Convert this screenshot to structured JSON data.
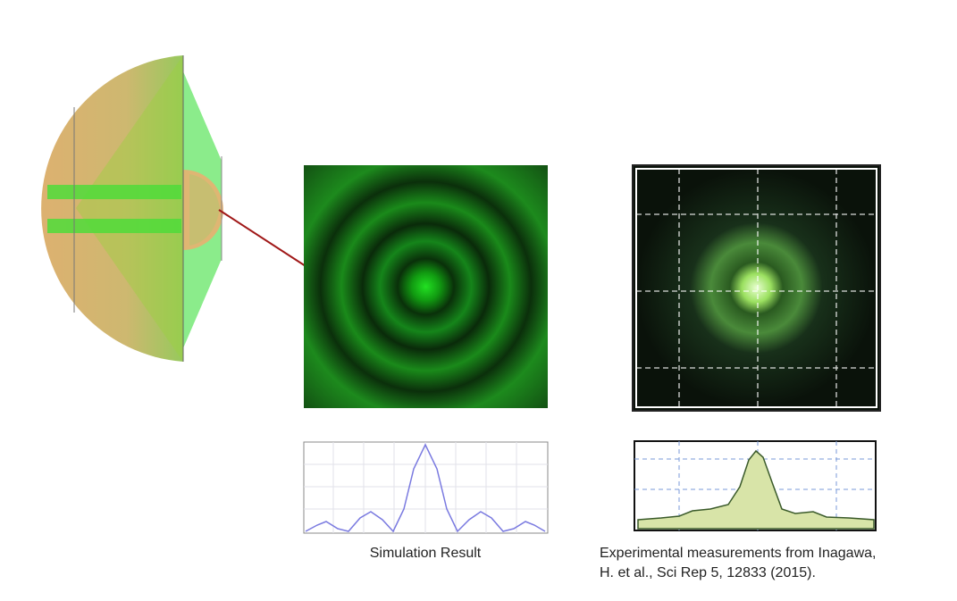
{
  "captions": {
    "simulation": "Simulation Result",
    "experimental": [
      "Experimental measurements from Inagawa,",
      "H. et al.,  Sci Rep 5, 12833 (2015)."
    ]
  }
}
